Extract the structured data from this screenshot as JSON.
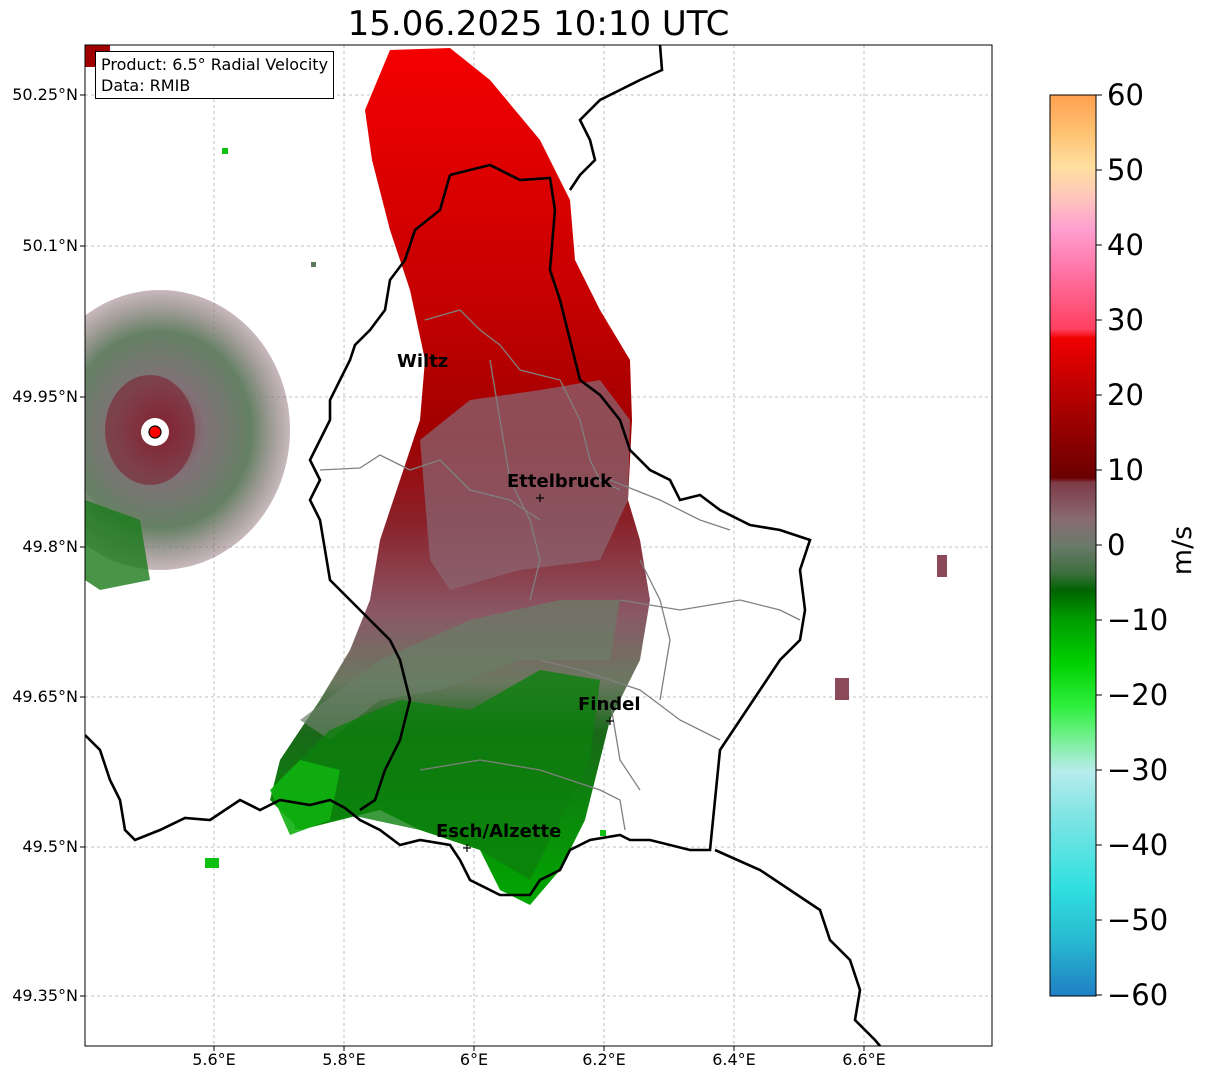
{
  "title": "15.06.2025 10:10 UTC",
  "info": {
    "product": "Product: 6.5° Radial Velocity",
    "source": "Data: RMIB"
  },
  "axes": {
    "y_ticks": [
      "50.25°N",
      "50.1°N",
      "49.95°N",
      "49.8°N",
      "49.65°N",
      "49.5°N",
      "49.35°N"
    ],
    "x_ticks": [
      "5.6°E",
      "5.8°E",
      "6°E",
      "6.2°E",
      "6.4°E",
      "6.6°E"
    ],
    "grid": true
  },
  "cities": [
    {
      "name": "Wiltz"
    },
    {
      "name": "Ettelbruck"
    },
    {
      "name": "Findel"
    },
    {
      "name": "Esch/Alzette"
    }
  ],
  "colorbar": {
    "unit": "m/s",
    "ticks": [
      "60",
      "50",
      "40",
      "30",
      "20",
      "10",
      "0",
      "−10",
      "−20",
      "−30",
      "−40",
      "−50",
      "−60"
    ],
    "min": -60,
    "max": 60,
    "colors": {
      "outbound_strong": "#ff0000",
      "outbound": "#b80000",
      "outbound_weak": "#7a0000",
      "near_zero_pos": "#8a5a66",
      "near_zero_neg": "#5c7a5c",
      "inbound_weak": "#006400",
      "inbound": "#00b000",
      "inbound_strong": "#00ee00",
      "inbound_extreme": "#40d8d8"
    }
  }
}
